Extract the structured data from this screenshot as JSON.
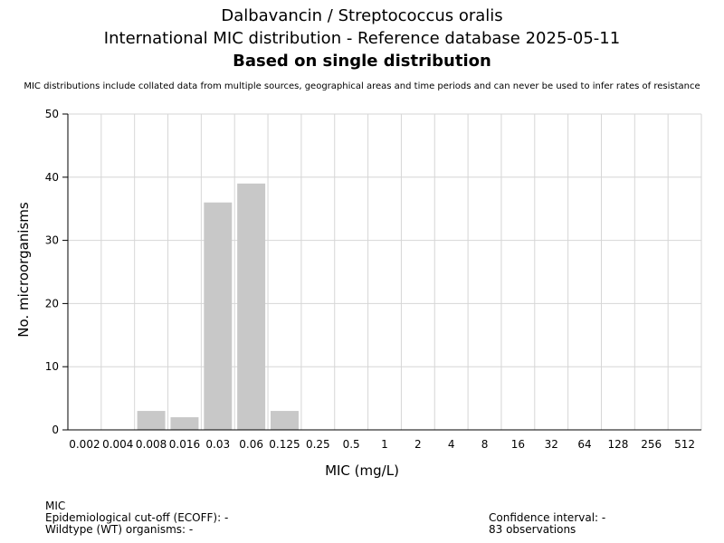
{
  "header": {
    "title_line1": "Dalbavancin / Streptococcus oralis",
    "title_line2": "International MIC distribution - Reference database 2025-05-11",
    "title_line3": "Based on single distribution",
    "subtitle": "MIC distributions include collated data from multiple sources, geographical areas and time periods and can never be used to infer rates of resistance"
  },
  "chart_data": {
    "type": "bar",
    "xlabel": "MIC (mg/L)",
    "ylabel": "No. microorganisms",
    "ylim": [
      0,
      50
    ],
    "yticks": [
      "0",
      "10",
      "20",
      "30",
      "40",
      "50"
    ],
    "grid": true,
    "bar_color": "#c8c8c8",
    "categories": [
      "0.002",
      "0.004",
      "0.008",
      "0.016",
      "0.03",
      "0.06",
      "0.125",
      "0.25",
      "0.5",
      "1",
      "2",
      "4",
      "8",
      "16",
      "32",
      "64",
      "128",
      "256",
      "512"
    ],
    "values": [
      0,
      0,
      3,
      2,
      36,
      39,
      3,
      0,
      0,
      0,
      0,
      0,
      0,
      0,
      0,
      0,
      0,
      0,
      0
    ]
  },
  "footer": {
    "left": {
      "line1": "MIC",
      "line2": "Epidemiological cut-off (ECOFF): -",
      "line3": "Wildtype (WT) organisms:  -"
    },
    "right": {
      "line1": "Confidence interval: -",
      "line2": "83 observations"
    }
  }
}
